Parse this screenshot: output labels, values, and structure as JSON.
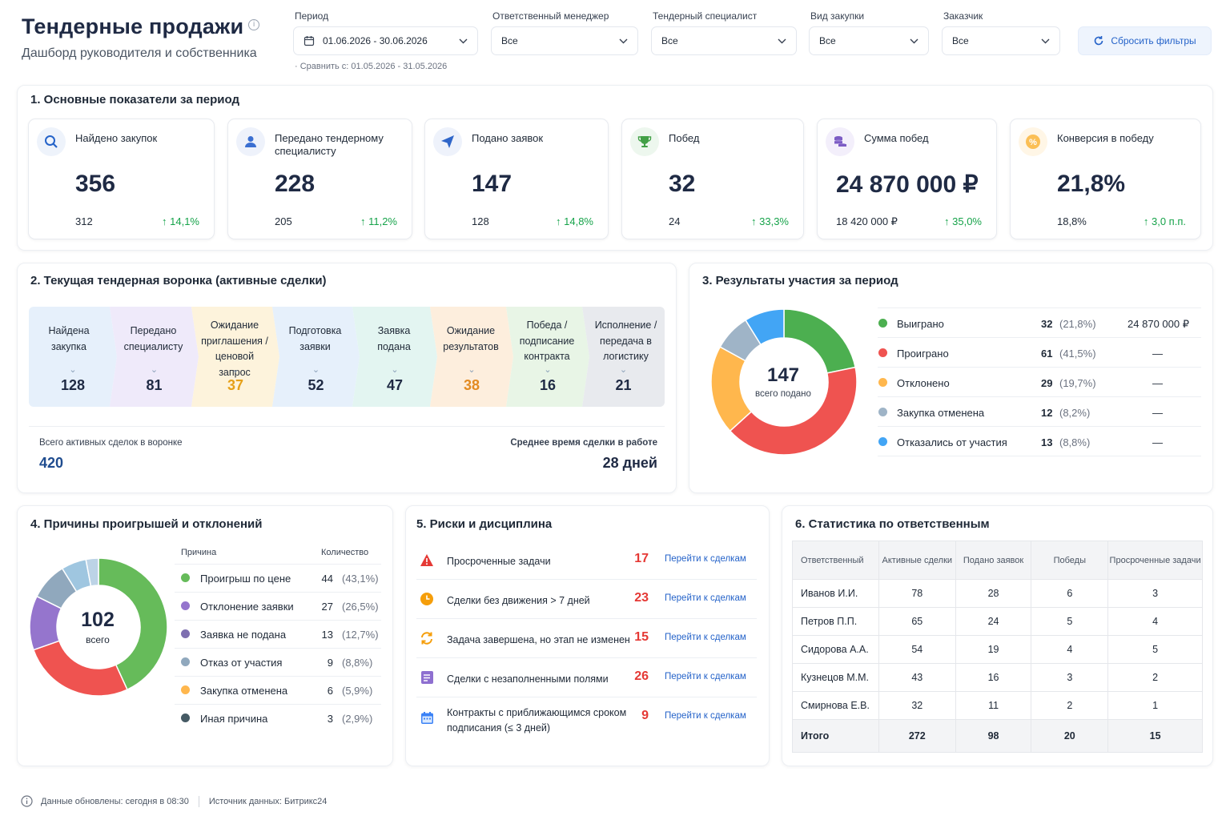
{
  "header": {
    "title": "Тендерные продажи",
    "info_icon": "info-icon",
    "subtitle": "Дашборд руководителя и собственника"
  },
  "filters": {
    "period": {
      "label": "Период",
      "value": "01.06.2026 - 30.06.2026",
      "icon": "calendar-icon"
    },
    "compare": "Сравнить с: 01.05.2026 - 31.05.2026",
    "manager": {
      "label": "Ответственный менеджер",
      "value": "Все"
    },
    "specialist": {
      "label": "Тендерный специалист",
      "value": "Все"
    },
    "purchase_type": {
      "label": "Вид закупки",
      "value": "Все"
    },
    "customer": {
      "label": "Заказчик",
      "value": "Все"
    },
    "reset_label": "Сбросить фильтры"
  },
  "kpis": {
    "title": "1. Основные показатели за период",
    "items": [
      {
        "label": "Найдено закупок",
        "value": "356",
        "prev": "312",
        "change": "14,1%",
        "icon": "search-icon",
        "color": "#2563c9",
        "bg": "#eef3fb"
      },
      {
        "label": "Передано тендерному специалисту",
        "value": "228",
        "prev": "205",
        "change": "11,2%",
        "icon": "user-icon",
        "color": "#3b6fd1",
        "bg": "#eef2fb"
      },
      {
        "label": "Подано заявок",
        "value": "147",
        "prev": "128",
        "change": "14,8%",
        "icon": "send-icon",
        "color": "#2f66c9",
        "bg": "#eef2fb"
      },
      {
        "label": "Побед",
        "value": "32",
        "prev": "24",
        "change": "33,3%",
        "icon": "trophy-icon",
        "color": "#43a047",
        "bg": "#edf7ee"
      },
      {
        "label": "Сумма побед",
        "value": "24 870 000 ₽",
        "prev": "18 420 000 ₽",
        "change": "35,0%",
        "icon": "coins-icon",
        "color": "#7c5cc4",
        "bg": "#f3effb"
      },
      {
        "label": "Конверсия в победу",
        "value": "21,8%",
        "prev": "18,8%",
        "change": "3,0 п.п.",
        "icon": "percent-icon",
        "color": "#f59e0b",
        "bg": "#fff6e6"
      }
    ]
  },
  "funnel": {
    "title": "2. Текущая тендерная воронка (активные сделки)",
    "stages": [
      {
        "label": "Найдена закупка",
        "value": "128",
        "bg": "#e6f0fb",
        "num_color": "#1f2a44"
      },
      {
        "label": "Передано специалисту",
        "value": "81",
        "bg": "#efeafa",
        "num_color": "#1f2a44"
      },
      {
        "label": "Ожидание приглашения / ценовой запрос",
        "value": "37",
        "bg": "#fdf3dc",
        "num_color": "#e6a019"
      },
      {
        "label": "Подготовка заявки",
        "value": "52",
        "bg": "#e6f0fb",
        "num_color": "#1f2a44"
      },
      {
        "label": "Заявка подана",
        "value": "47",
        "bg": "#e3f5f1",
        "num_color": "#1f2a44"
      },
      {
        "label": "Ожидание результатов",
        "value": "38",
        "bg": "#fdeedd",
        "num_color": "#e38b22"
      },
      {
        "label": "Победа / подписание контракта",
        "value": "16",
        "bg": "#e8f5e6",
        "num_color": "#1f2a44"
      },
      {
        "label": "Исполнение / передача в логистику",
        "value": "21",
        "bg": "#e8eaee",
        "num_color": "#1f2a44"
      }
    ],
    "total_label": "Всего активных сделок в воронке",
    "total_value": "420",
    "avg_label": "Среднее время сделки в работе",
    "avg_value": "28 дней"
  },
  "results": {
    "title": "3. Результаты участия за период",
    "center_value": "147",
    "center_label": "всего подано",
    "rows": [
      {
        "label": "Выиграно",
        "count": "32",
        "pct": "(21,8%)",
        "sum": "24 870 000 ₽",
        "color": "#4caf50"
      },
      {
        "label": "Проиграно",
        "count": "61",
        "pct": "(41,5%)",
        "sum": "—",
        "color": "#ef5350"
      },
      {
        "label": "Отклонено",
        "count": "29",
        "pct": "(19,7%)",
        "sum": "—",
        "color": "#ffb74d"
      },
      {
        "label": "Закупка отменена",
        "count": "12",
        "pct": "(8,2%)",
        "sum": "—",
        "color": "#9fb4c7"
      },
      {
        "label": "Отказались от участия",
        "count": "13",
        "pct": "(8,8%)",
        "sum": "—",
        "color": "#42a5f5"
      }
    ],
    "chart_data": {
      "type": "pie",
      "categories": [
        "Выиграно",
        "Проиграно",
        "Отклонено",
        "Закупка отменена",
        "Отказались от участия"
      ],
      "values": [
        32,
        61,
        29,
        12,
        13
      ],
      "colors": [
        "#4caf50",
        "#ef5350",
        "#ffb74d",
        "#9fb4c7",
        "#42a5f5"
      ]
    }
  },
  "reasons": {
    "title": "4. Причины проигрышей и отклонений",
    "col_reason": "Причина",
    "col_count": "Количество",
    "center_value": "102",
    "center_label": "всего",
    "rows": [
      {
        "label": "Проигрыш по цене",
        "count": "44",
        "pct": "(43,1%)",
        "color": "#66bb5a"
      },
      {
        "label": "Отклонение заявки",
        "count": "27",
        "pct": "(26,5%)",
        "color": "#9575cd"
      },
      {
        "label": "Заявка не подана",
        "count": "13",
        "pct": "(12,7%)",
        "color": "#7e6fb0"
      },
      {
        "label": "Отказ от участия",
        "count": "9",
        "pct": "(8,8%)",
        "color": "#90a8bd"
      },
      {
        "label": "Закупка отменена",
        "count": "6",
        "pct": "(5,9%)",
        "color": "#ffb74d"
      },
      {
        "label": "Иная причина",
        "count": "3",
        "pct": "(2,9%)",
        "color": "#455a64"
      }
    ],
    "chart_data": {
      "type": "pie",
      "categories": [
        "Проигрыш по цене",
        "Отклонение заявки",
        "Заявка не подана",
        "Отказ от участия",
        "Закупка отменена",
        "Иная причина"
      ],
      "values": [
        44,
        27,
        13,
        9,
        6,
        3
      ],
      "colors": [
        "#66bb5a",
        "#ef5350",
        "#9575cd",
        "#90a8bd",
        "#9fc6e0",
        "#bcd3e6"
      ]
    }
  },
  "risks": {
    "title": "5. Риски и дисциплина",
    "link_label": "Перейти к сделкам",
    "rows": [
      {
        "label": "Просроченные задачи",
        "value": "17",
        "icon": "warning-icon",
        "color": "#e53935"
      },
      {
        "label": "Сделки без движения > 7 дней",
        "value": "23",
        "icon": "clock-icon",
        "color": "#f59e0b"
      },
      {
        "label": "Задача завершена, но этап не изменен",
        "value": "15",
        "icon": "refresh-icon",
        "color": "#f59e0b"
      },
      {
        "label": "Сделки с незаполненными полями",
        "value": "26",
        "icon": "form-icon",
        "color": "#7c5cc4"
      },
      {
        "label": "Контракты с приближающимся сроком подписания (≤ 3 дней)",
        "value": "9",
        "icon": "calendar-icon",
        "color": "#2f66c9"
      }
    ]
  },
  "stats": {
    "title": "6. Статистика по ответственным",
    "headers": [
      "Ответственный",
      "Активные сделки",
      "Подано заявок",
      "Победы",
      "Просроченные задачи"
    ],
    "rows": [
      [
        "Иванов И.И.",
        "78",
        "28",
        "6",
        "3"
      ],
      [
        "Петров П.П.",
        "65",
        "24",
        "5",
        "4"
      ],
      [
        "Сидорова А.А.",
        "54",
        "19",
        "4",
        "5"
      ],
      [
        "Кузнецов М.М.",
        "43",
        "16",
        "3",
        "2"
      ],
      [
        "Смирнова Е.В.",
        "32",
        "11",
        "2",
        "1"
      ]
    ],
    "total": [
      "Итого",
      "272",
      "98",
      "20",
      "15"
    ]
  },
  "footer": {
    "updated": "Данные обновлены: сегодня в 08:30",
    "source": "Источник данных: Битрикс24"
  }
}
